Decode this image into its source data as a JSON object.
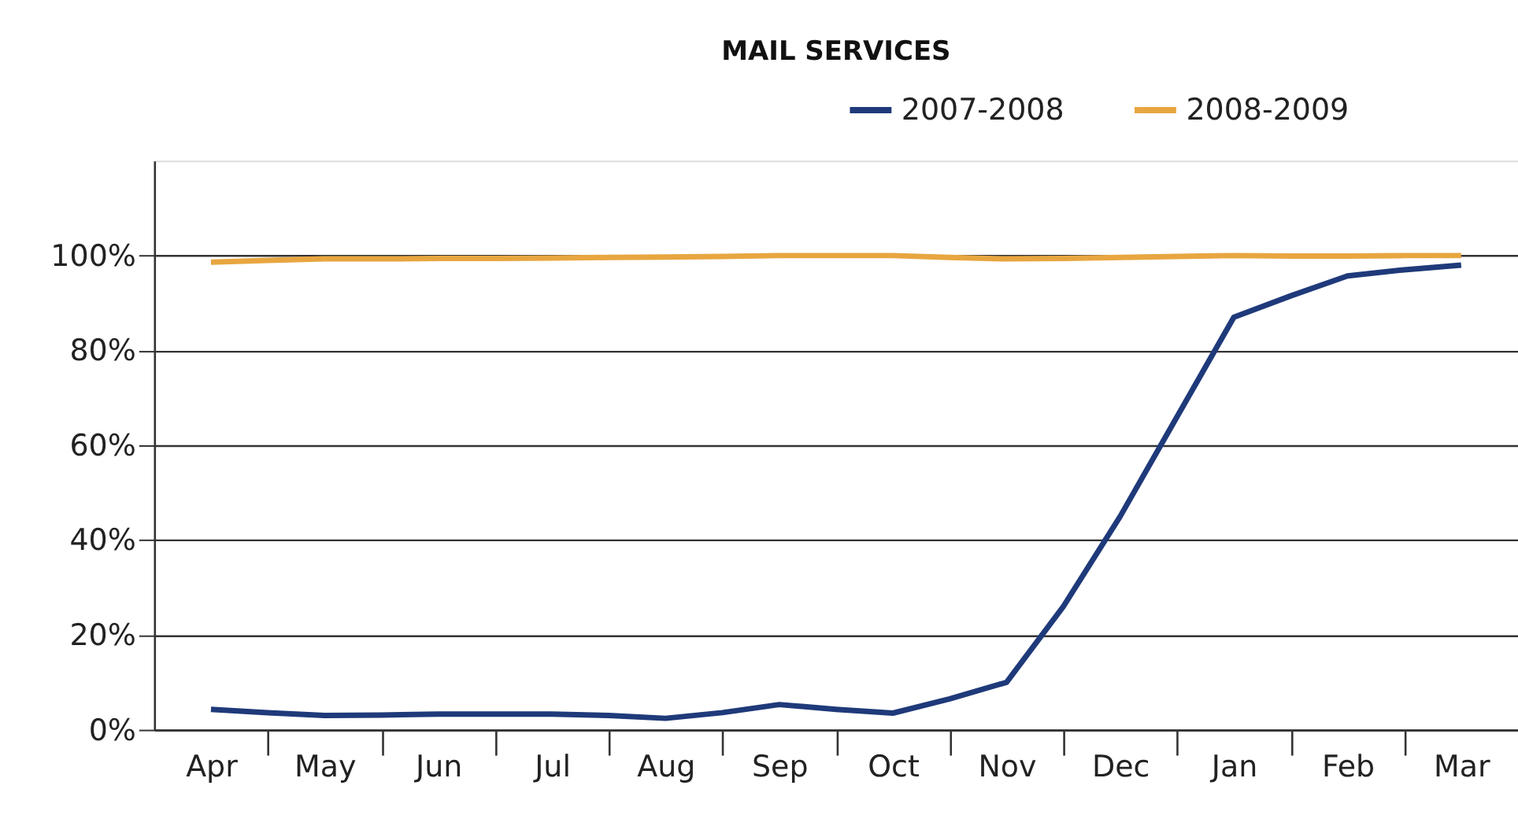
{
  "chart_data": {
    "type": "line",
    "title": "MAIL SERVICES",
    "categories": [
      "Apr",
      null,
      "May",
      null,
      "Jun",
      null,
      "Jul",
      null,
      "Aug",
      null,
      "Sep",
      null,
      "Oct",
      null,
      "Nov",
      null,
      "Dec",
      null,
      "Jan",
      null,
      "Feb",
      null,
      "Mar"
    ],
    "ylim": [
      0,
      120
    ],
    "yticks": [
      {
        "value": 0,
        "label": "0%"
      },
      {
        "value": 20,
        "label": "20%"
      },
      {
        "value": 40,
        "label": "40%"
      },
      {
        "value": 60,
        "label": "60%"
      },
      {
        "value": 80,
        "label": "80%"
      },
      {
        "value": 100,
        "label": "100%"
      }
    ],
    "grid": "y",
    "legend": "top right",
    "marker": "none",
    "line_style": "solid",
    "series": [
      {
        "name": "2007-2008",
        "color": "#1f3a7a",
        "values": [
          4.3,
          3.6,
          3.0,
          3.1,
          3.3,
          3.3,
          3.3,
          3.0,
          2.4,
          3.6,
          5.3,
          4.3,
          3.5,
          6.5,
          10,
          26,
          45,
          66,
          87,
          91.5,
          95.7,
          97,
          98
        ]
      },
      {
        "name": "2008-2009",
        "color": "#e8a640",
        "values": [
          98.6,
          99,
          99.3,
          99.3,
          99.4,
          99.4,
          99.5,
          99.6,
          99.7,
          99.8,
          100,
          100,
          100,
          99.6,
          99.3,
          99.4,
          99.6,
          99.8,
          100,
          99.9,
          99.9,
          100,
          100
        ]
      }
    ]
  }
}
